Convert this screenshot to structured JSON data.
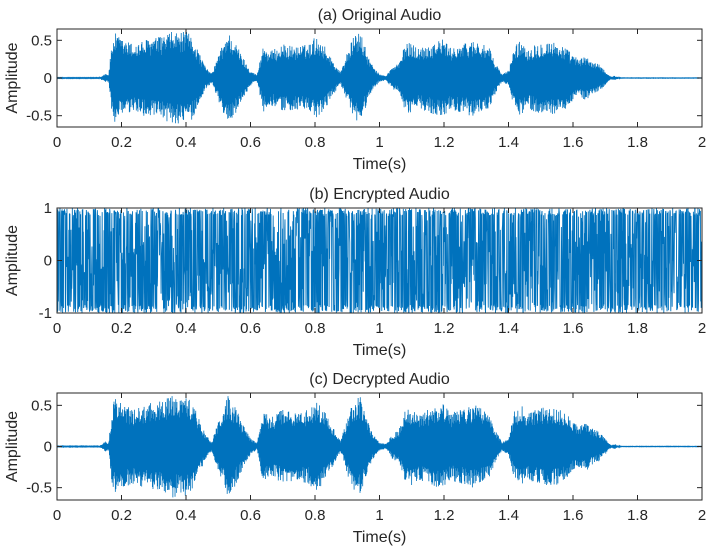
{
  "colors": {
    "signal": "#0072BD",
    "axes": "#262626",
    "background": "#ffffff"
  },
  "chart_data": [
    {
      "type": "line",
      "title": "(a) Original Audio",
      "xlabel": "Time(s)",
      "ylabel": "Amplitude",
      "xlim": [
        0,
        2
      ],
      "ylim": [
        -0.65,
        0.65
      ],
      "xticks": [
        0,
        0.2,
        0.4,
        0.6,
        0.8,
        1,
        1.2,
        1.4,
        1.6,
        1.8,
        2
      ],
      "xtick_labels": [
        "0",
        "0.2",
        "0.4",
        "0.6",
        "0.8",
        "1",
        "1.2",
        "1.4",
        "1.6",
        "1.8",
        "2"
      ],
      "yticks": [
        -0.5,
        0,
        0.5
      ],
      "ytick_labels": [
        "-0.5",
        "0",
        "0.5"
      ],
      "grid": false,
      "envelope": {
        "t": [
          0,
          0.13,
          0.14,
          0.15,
          0.16,
          0.17,
          0.18,
          0.2,
          0.24,
          0.28,
          0.32,
          0.36,
          0.38,
          0.4,
          0.42,
          0.44,
          0.46,
          0.48,
          0.5,
          0.53,
          0.55,
          0.58,
          0.6,
          0.62,
          0.64,
          0.66,
          0.68,
          0.7,
          0.74,
          0.78,
          0.8,
          0.82,
          0.84,
          0.86,
          0.88,
          0.9,
          0.92,
          0.94,
          0.96,
          0.98,
          1.0,
          1.02,
          1.04,
          1.06,
          1.08,
          1.1,
          1.12,
          1.15,
          1.18,
          1.2,
          1.22,
          1.24,
          1.26,
          1.28,
          1.3,
          1.32,
          1.34,
          1.36,
          1.38,
          1.4,
          1.42,
          1.44,
          1.46,
          1.48,
          1.5,
          1.52,
          1.54,
          1.56,
          1.58,
          1.6,
          1.62,
          1.64,
          1.66,
          1.68,
          1.7,
          1.71,
          1.72,
          1.73,
          1.74,
          1.75,
          2.0
        ],
        "amp": [
          0.005,
          0.005,
          0.03,
          0.06,
          0.05,
          0.45,
          0.6,
          0.52,
          0.45,
          0.52,
          0.55,
          0.62,
          0.6,
          0.62,
          0.55,
          0.35,
          0.15,
          0.06,
          0.3,
          0.62,
          0.5,
          0.25,
          0.1,
          0.04,
          0.45,
          0.35,
          0.4,
          0.45,
          0.42,
          0.45,
          0.55,
          0.5,
          0.35,
          0.2,
          0.08,
          0.35,
          0.55,
          0.62,
          0.35,
          0.15,
          0.05,
          0.03,
          0.15,
          0.2,
          0.45,
          0.48,
          0.4,
          0.45,
          0.5,
          0.52,
          0.4,
          0.45,
          0.45,
          0.5,
          0.5,
          0.45,
          0.4,
          0.2,
          0.05,
          0.1,
          0.45,
          0.5,
          0.4,
          0.45,
          0.48,
          0.5,
          0.48,
          0.45,
          0.4,
          0.3,
          0.25,
          0.3,
          0.22,
          0.18,
          0.1,
          0.04,
          0.02,
          0.03,
          0.01,
          0.003,
          0.003
        ]
      }
    },
    {
      "type": "line",
      "title": "(b) Encrypted Audio",
      "xlabel": "Time(s)",
      "ylabel": "Amplitude",
      "xlim": [
        0,
        2
      ],
      "ylim": [
        -1,
        1
      ],
      "xticks": [
        0,
        0.2,
        0.4,
        0.6,
        0.8,
        1,
        1.2,
        1.4,
        1.6,
        1.8,
        2
      ],
      "xtick_labels": [
        "0",
        "0.2",
        "0.4",
        "0.6",
        "0.8",
        "1",
        "1.2",
        "1.4",
        "1.6",
        "1.8",
        "2"
      ],
      "yticks": [
        -1,
        0,
        1
      ],
      "ytick_labels": [
        "-1",
        "0",
        "1"
      ],
      "grid": false,
      "envelope": {
        "t": [
          0,
          2.0
        ],
        "amp": [
          1.0,
          1.0
        ]
      }
    },
    {
      "type": "line",
      "title": "(c) Decrypted Audio",
      "xlabel": "Time(s)",
      "ylabel": "Amplitude",
      "xlim": [
        0,
        2
      ],
      "ylim": [
        -0.65,
        0.65
      ],
      "xticks": [
        0,
        0.2,
        0.4,
        0.6,
        0.8,
        1,
        1.2,
        1.4,
        1.6,
        1.8,
        2
      ],
      "xtick_labels": [
        "0",
        "0.2",
        "0.4",
        "0.6",
        "0.8",
        "1",
        "1.2",
        "1.4",
        "1.6",
        "1.8",
        "2"
      ],
      "yticks": [
        -0.5,
        0,
        0.5
      ],
      "ytick_labels": [
        "-0.5",
        "0",
        "0.5"
      ],
      "grid": false,
      "envelope": {
        "t": [
          0,
          0.13,
          0.14,
          0.15,
          0.16,
          0.17,
          0.18,
          0.2,
          0.24,
          0.28,
          0.32,
          0.36,
          0.38,
          0.4,
          0.42,
          0.44,
          0.46,
          0.48,
          0.5,
          0.53,
          0.55,
          0.58,
          0.6,
          0.62,
          0.64,
          0.66,
          0.68,
          0.7,
          0.74,
          0.78,
          0.8,
          0.82,
          0.84,
          0.86,
          0.88,
          0.9,
          0.92,
          0.94,
          0.96,
          0.98,
          1.0,
          1.02,
          1.04,
          1.06,
          1.08,
          1.1,
          1.12,
          1.15,
          1.18,
          1.2,
          1.22,
          1.24,
          1.26,
          1.28,
          1.3,
          1.32,
          1.34,
          1.36,
          1.38,
          1.4,
          1.42,
          1.44,
          1.46,
          1.48,
          1.5,
          1.52,
          1.54,
          1.56,
          1.58,
          1.6,
          1.62,
          1.64,
          1.66,
          1.68,
          1.7,
          1.71,
          1.72,
          1.73,
          1.74,
          1.75,
          2.0
        ],
        "amp": [
          0.005,
          0.005,
          0.03,
          0.06,
          0.05,
          0.45,
          0.6,
          0.52,
          0.45,
          0.52,
          0.55,
          0.62,
          0.6,
          0.62,
          0.55,
          0.35,
          0.15,
          0.06,
          0.3,
          0.62,
          0.5,
          0.25,
          0.1,
          0.04,
          0.45,
          0.35,
          0.4,
          0.45,
          0.42,
          0.45,
          0.55,
          0.5,
          0.35,
          0.2,
          0.08,
          0.35,
          0.55,
          0.62,
          0.35,
          0.15,
          0.05,
          0.03,
          0.15,
          0.2,
          0.45,
          0.48,
          0.4,
          0.45,
          0.5,
          0.52,
          0.4,
          0.45,
          0.45,
          0.5,
          0.5,
          0.45,
          0.4,
          0.2,
          0.05,
          0.1,
          0.45,
          0.5,
          0.4,
          0.45,
          0.48,
          0.5,
          0.48,
          0.45,
          0.4,
          0.3,
          0.25,
          0.3,
          0.22,
          0.18,
          0.1,
          0.04,
          0.02,
          0.03,
          0.01,
          0.003,
          0.003
        ]
      }
    }
  ]
}
